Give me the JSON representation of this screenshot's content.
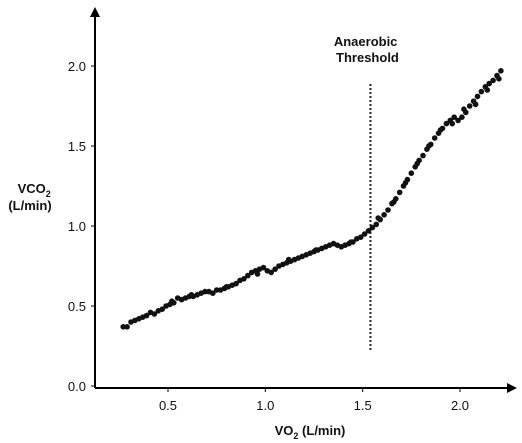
{
  "chart_data": {
    "type": "scatter",
    "title": "",
    "xlabel": {
      "main": "VO",
      "sub": "2",
      "unit": " (L/min)"
    },
    "ylabel": {
      "main": "VCO",
      "sub": "2",
      "unit": "(L/min)"
    },
    "xlim": [
      0.2,
      2.3
    ],
    "ylim": [
      0.0,
      2.3
    ],
    "x_ticks": [
      {
        "value": 0.5,
        "label": "0.5"
      },
      {
        "value": 1.0,
        "label": "1.0"
      },
      {
        "value": 1.5,
        "label": "1.5"
      },
      {
        "value": 2.0,
        "label": "2.0"
      }
    ],
    "y_ticks": [
      {
        "value": 0.0,
        "label": "0.0"
      },
      {
        "value": 0.5,
        "label": "0.5"
      },
      {
        "value": 1.0,
        "label": "1.0"
      },
      {
        "value": 1.5,
        "label": "1.5"
      },
      {
        "value": 2.0,
        "label": "2.0"
      }
    ],
    "grid": false,
    "annotation": {
      "lines": [
        "Anaerobic",
        "Threshold"
      ],
      "x": 1.54,
      "y_from": 0.2,
      "y_to": 2.0,
      "style": "dotted"
    },
    "point_color": "#111111",
    "series": [
      {
        "points": [
          [
            0.27,
            0.37
          ],
          [
            0.29,
            0.37
          ],
          [
            0.31,
            0.4
          ],
          [
            0.33,
            0.41
          ],
          [
            0.35,
            0.42
          ],
          [
            0.37,
            0.43
          ],
          [
            0.39,
            0.44
          ],
          [
            0.41,
            0.46
          ],
          [
            0.43,
            0.45
          ],
          [
            0.45,
            0.47
          ],
          [
            0.47,
            0.48
          ],
          [
            0.49,
            0.5
          ],
          [
            0.51,
            0.51
          ],
          [
            0.53,
            0.52
          ],
          [
            0.55,
            0.55
          ],
          [
            0.57,
            0.54
          ],
          [
            0.59,
            0.55
          ],
          [
            0.61,
            0.56
          ],
          [
            0.63,
            0.56
          ],
          [
            0.65,
            0.57
          ],
          [
            0.67,
            0.58
          ],
          [
            0.69,
            0.59
          ],
          [
            0.71,
            0.59
          ],
          [
            0.73,
            0.58
          ],
          [
            0.75,
            0.6
          ],
          [
            0.77,
            0.6
          ],
          [
            0.79,
            0.61
          ],
          [
            0.81,
            0.62
          ],
          [
            0.83,
            0.63
          ],
          [
            0.85,
            0.64
          ],
          [
            0.87,
            0.66
          ],
          [
            0.89,
            0.67
          ],
          [
            0.91,
            0.69
          ],
          [
            0.93,
            0.71
          ],
          [
            0.95,
            0.72
          ],
          [
            0.97,
            0.73
          ],
          [
            0.99,
            0.74
          ],
          [
            1.01,
            0.72
          ],
          [
            1.03,
            0.71
          ],
          [
            1.05,
            0.73
          ],
          [
            1.07,
            0.75
          ],
          [
            1.09,
            0.76
          ],
          [
            1.11,
            0.77
          ],
          [
            1.13,
            0.78
          ],
          [
            1.15,
            0.79
          ],
          [
            1.17,
            0.8
          ],
          [
            1.19,
            0.81
          ],
          [
            1.21,
            0.82
          ],
          [
            1.23,
            0.83
          ],
          [
            1.25,
            0.84
          ],
          [
            1.27,
            0.85
          ],
          [
            1.29,
            0.86
          ],
          [
            1.31,
            0.87
          ],
          [
            1.33,
            0.88
          ],
          [
            1.35,
            0.89
          ],
          [
            1.37,
            0.88
          ],
          [
            1.39,
            0.87
          ],
          [
            1.41,
            0.88
          ],
          [
            1.43,
            0.89
          ],
          [
            1.45,
            0.9
          ],
          [
            1.47,
            0.92
          ],
          [
            1.49,
            0.93
          ],
          [
            1.51,
            0.95
          ],
          [
            1.53,
            0.97
          ],
          [
            1.55,
            0.99
          ],
          [
            1.57,
            1.01
          ],
          [
            1.59,
            1.04
          ],
          [
            1.61,
            1.07
          ],
          [
            1.63,
            1.1
          ],
          [
            1.65,
            1.14
          ],
          [
            1.67,
            1.17
          ],
          [
            1.69,
            1.21
          ],
          [
            1.71,
            1.25
          ],
          [
            1.73,
            1.29
          ],
          [
            1.75,
            1.33
          ],
          [
            1.77,
            1.37
          ],
          [
            1.79,
            1.41
          ],
          [
            1.81,
            1.44
          ],
          [
            1.83,
            1.48
          ],
          [
            1.85,
            1.51
          ],
          [
            1.87,
            1.55
          ],
          [
            1.89,
            1.58
          ],
          [
            1.91,
            1.61
          ],
          [
            1.93,
            1.64
          ],
          [
            1.95,
            1.66
          ],
          [
            1.97,
            1.68
          ],
          [
            1.99,
            1.66
          ],
          [
            2.01,
            1.68
          ],
          [
            2.03,
            1.71
          ],
          [
            2.05,
            1.75
          ],
          [
            2.07,
            1.78
          ],
          [
            2.09,
            1.81
          ],
          [
            2.11,
            1.84
          ],
          [
            2.13,
            1.87
          ],
          [
            2.15,
            1.89
          ],
          [
            2.17,
            1.91
          ],
          [
            2.19,
            1.94
          ],
          [
            2.21,
            1.97
          ],
          [
            0.52,
            0.53
          ],
          [
            0.62,
            0.57
          ],
          [
            0.8,
            0.62
          ],
          [
            0.96,
            0.7
          ],
          [
            1.12,
            0.79
          ],
          [
            1.26,
            0.85
          ],
          [
            1.44,
            0.9
          ],
          [
            1.58,
            1.05
          ],
          [
            1.66,
            1.15
          ],
          [
            1.72,
            1.27
          ],
          [
            1.78,
            1.39
          ],
          [
            1.84,
            1.5
          ],
          [
            1.9,
            1.6
          ],
          [
            1.96,
            1.64
          ],
          [
            2.02,
            1.73
          ],
          [
            2.08,
            1.76
          ],
          [
            2.14,
            1.85
          ],
          [
            2.2,
            1.92
          ]
        ]
      }
    ]
  }
}
